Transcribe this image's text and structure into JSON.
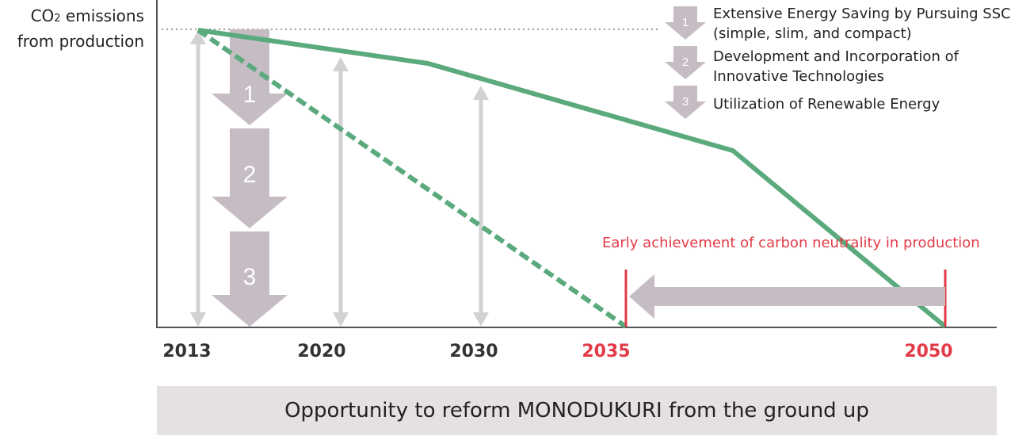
{
  "y_axis_label": {
    "line1_prefix": "CO",
    "line1_subscript": "2",
    "line1_suffix": " emissions",
    "line2": "from production"
  },
  "x_ticks": [
    {
      "label": "2013",
      "color": "#333333"
    },
    {
      "label": "2020",
      "color": "#333333"
    },
    {
      "label": "2030",
      "color": "#333333"
    },
    {
      "label": "2035",
      "color": "#e23a46"
    },
    {
      "label": "2050",
      "color": "#e23a46"
    }
  ],
  "steps": [
    {
      "number": "1",
      "legend_lines": [
        "Extensive Energy Saving by Pursuing SSC",
        "(simple, slim, and compact)"
      ]
    },
    {
      "number": "2",
      "legend_lines": [
        "Development and Incorporation of",
        "Innovative Technologies"
      ]
    },
    {
      "number": "3",
      "legend_lines": [
        "Utilization of Renewable Energy"
      ]
    }
  ],
  "early_achievement_label": "Early achievement of carbon neutrality in production",
  "banner_text": "Opportunity to reform MONODUKURI from the ground up",
  "colors": {
    "green": "#5aaa7d",
    "arrow_gray": "#c6bcc3",
    "light_gray": "#d2d2d2",
    "red": "#e23a46",
    "banner_bg": "#e5e0e2"
  }
}
